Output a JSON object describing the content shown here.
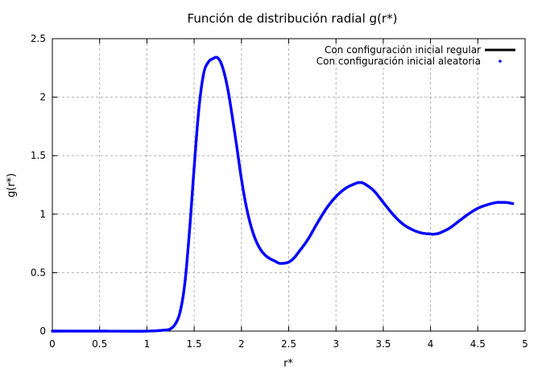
{
  "chart_data": {
    "type": "line",
    "title": "Función de distribución radial g(r*)",
    "xlabel": "r*",
    "ylabel": "g(r*)",
    "xlim": [
      0,
      5
    ],
    "ylim": [
      0,
      2.5
    ],
    "x_ticks": [
      0,
      0.5,
      1,
      1.5,
      2,
      2.5,
      3,
      3.5,
      4,
      4.5,
      5
    ],
    "y_ticks": [
      0,
      0.5,
      1,
      1.5,
      2,
      2.5
    ],
    "x_tick_labels": [
      "0",
      "0.5",
      "1",
      "1.5",
      "2",
      "2.5",
      "3",
      "3.5",
      "4",
      "4.5",
      "5"
    ],
    "y_tick_labels": [
      "0",
      "0.5",
      "1",
      "1.5",
      "2",
      "2.5"
    ],
    "grid": true,
    "legend_position": "top-right",
    "series": [
      {
        "name": "Con configuración inicial regular",
        "style": "line",
        "color": "#000000",
        "x": [
          0,
          0.5,
          1.0,
          1.2,
          1.25,
          1.3,
          1.35,
          1.4,
          1.45,
          1.5,
          1.55,
          1.6,
          1.65,
          1.7,
          1.74,
          1.78,
          1.82,
          1.86,
          1.9,
          1.95,
          2.0,
          2.05,
          2.1,
          2.15,
          2.2,
          2.25,
          2.3,
          2.35,
          2.4,
          2.45,
          2.5,
          2.55,
          2.6,
          2.7,
          2.8,
          2.9,
          3.0,
          3.1,
          3.2,
          3.25,
          3.3,
          3.4,
          3.5,
          3.6,
          3.7,
          3.8,
          3.9,
          4.0,
          4.05,
          4.1,
          4.2,
          4.3,
          4.4,
          4.5,
          4.6,
          4.7,
          4.75,
          4.8,
          4.87
        ],
        "y": [
          0,
          0,
          0,
          0.01,
          0.02,
          0.06,
          0.16,
          0.4,
          0.85,
          1.4,
          1.9,
          2.2,
          2.3,
          2.33,
          2.34,
          2.3,
          2.2,
          2.05,
          1.85,
          1.58,
          1.3,
          1.07,
          0.9,
          0.78,
          0.7,
          0.65,
          0.62,
          0.6,
          0.58,
          0.58,
          0.59,
          0.62,
          0.67,
          0.78,
          0.92,
          1.05,
          1.15,
          1.22,
          1.26,
          1.27,
          1.26,
          1.2,
          1.1,
          1.0,
          0.92,
          0.87,
          0.84,
          0.83,
          0.83,
          0.84,
          0.88,
          0.94,
          1.0,
          1.05,
          1.08,
          1.1,
          1.1,
          1.1,
          1.09
        ]
      },
      {
        "name": "Con configuración inicial aleatoria",
        "style": "points",
        "color": "#0000ff",
        "x": [
          0,
          0.5,
          1.0,
          1.2,
          1.25,
          1.3,
          1.35,
          1.4,
          1.45,
          1.5,
          1.55,
          1.6,
          1.65,
          1.7,
          1.74,
          1.78,
          1.82,
          1.86,
          1.9,
          1.95,
          2.0,
          2.05,
          2.1,
          2.15,
          2.2,
          2.25,
          2.3,
          2.35,
          2.4,
          2.45,
          2.5,
          2.55,
          2.6,
          2.7,
          2.8,
          2.9,
          3.0,
          3.1,
          3.2,
          3.25,
          3.3,
          3.4,
          3.5,
          3.6,
          3.7,
          3.8,
          3.9,
          4.0,
          4.05,
          4.1,
          4.2,
          4.3,
          4.4,
          4.5,
          4.6,
          4.7,
          4.75,
          4.8,
          4.87
        ],
        "y": [
          0,
          0,
          0,
          0.01,
          0.02,
          0.06,
          0.16,
          0.4,
          0.85,
          1.4,
          1.9,
          2.2,
          2.3,
          2.33,
          2.34,
          2.3,
          2.2,
          2.05,
          1.85,
          1.58,
          1.3,
          1.07,
          0.9,
          0.78,
          0.7,
          0.65,
          0.62,
          0.6,
          0.58,
          0.58,
          0.59,
          0.62,
          0.67,
          0.78,
          0.92,
          1.05,
          1.15,
          1.22,
          1.26,
          1.27,
          1.26,
          1.2,
          1.1,
          1.0,
          0.92,
          0.87,
          0.84,
          0.83,
          0.83,
          0.84,
          0.88,
          0.94,
          1.0,
          1.05,
          1.08,
          1.1,
          1.1,
          1.1,
          1.09
        ]
      }
    ]
  }
}
